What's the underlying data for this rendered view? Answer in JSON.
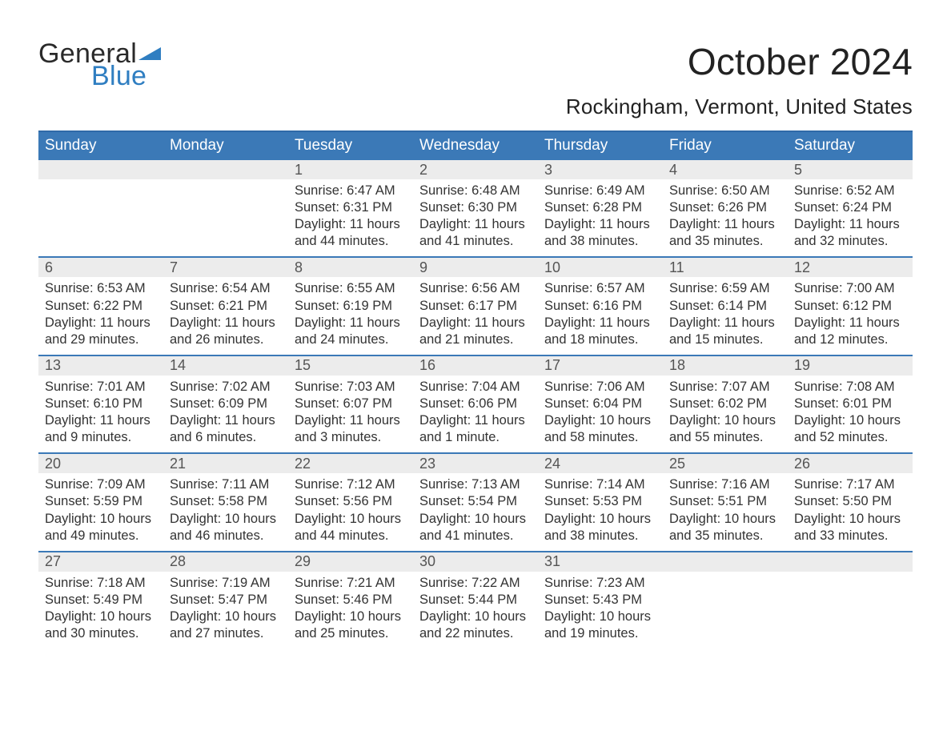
{
  "brand": {
    "part1": "General",
    "part2": "Blue"
  },
  "title": "October 2024",
  "location": "Rockingham, Vermont, United States",
  "colors": {
    "header_blue": "#3b79b7",
    "daynum_bg": "#ececec",
    "row_separator": "#3b79b7",
    "logo_blue": "#2f7ec1",
    "logo_dark": "#2a2a2a",
    "page_bg": "#ffffff",
    "text": "#333333"
  },
  "weekdays": [
    "Sunday",
    "Monday",
    "Tuesday",
    "Wednesday",
    "Thursday",
    "Friday",
    "Saturday"
  ],
  "weeks": [
    [
      {
        "empty": true
      },
      {
        "empty": true
      },
      {
        "n": "1",
        "sunrise": "6:47 AM",
        "sunset": "6:31 PM",
        "daylight": "11 hours and 44 minutes."
      },
      {
        "n": "2",
        "sunrise": "6:48 AM",
        "sunset": "6:30 PM",
        "daylight": "11 hours and 41 minutes."
      },
      {
        "n": "3",
        "sunrise": "6:49 AM",
        "sunset": "6:28 PM",
        "daylight": "11 hours and 38 minutes."
      },
      {
        "n": "4",
        "sunrise": "6:50 AM",
        "sunset": "6:26 PM",
        "daylight": "11 hours and 35 minutes."
      },
      {
        "n": "5",
        "sunrise": "6:52 AM",
        "sunset": "6:24 PM",
        "daylight": "11 hours and 32 minutes."
      }
    ],
    [
      {
        "n": "6",
        "sunrise": "6:53 AM",
        "sunset": "6:22 PM",
        "daylight": "11 hours and 29 minutes."
      },
      {
        "n": "7",
        "sunrise": "6:54 AM",
        "sunset": "6:21 PM",
        "daylight": "11 hours and 26 minutes."
      },
      {
        "n": "8",
        "sunrise": "6:55 AM",
        "sunset": "6:19 PM",
        "daylight": "11 hours and 24 minutes."
      },
      {
        "n": "9",
        "sunrise": "6:56 AM",
        "sunset": "6:17 PM",
        "daylight": "11 hours and 21 minutes."
      },
      {
        "n": "10",
        "sunrise": "6:57 AM",
        "sunset": "6:16 PM",
        "daylight": "11 hours and 18 minutes."
      },
      {
        "n": "11",
        "sunrise": "6:59 AM",
        "sunset": "6:14 PM",
        "daylight": "11 hours and 15 minutes."
      },
      {
        "n": "12",
        "sunrise": "7:00 AM",
        "sunset": "6:12 PM",
        "daylight": "11 hours and 12 minutes."
      }
    ],
    [
      {
        "n": "13",
        "sunrise": "7:01 AM",
        "sunset": "6:10 PM",
        "daylight": "11 hours and 9 minutes."
      },
      {
        "n": "14",
        "sunrise": "7:02 AM",
        "sunset": "6:09 PM",
        "daylight": "11 hours and 6 minutes."
      },
      {
        "n": "15",
        "sunrise": "7:03 AM",
        "sunset": "6:07 PM",
        "daylight": "11 hours and 3 minutes."
      },
      {
        "n": "16",
        "sunrise": "7:04 AM",
        "sunset": "6:06 PM",
        "daylight": "11 hours and 1 minute."
      },
      {
        "n": "17",
        "sunrise": "7:06 AM",
        "sunset": "6:04 PM",
        "daylight": "10 hours and 58 minutes."
      },
      {
        "n": "18",
        "sunrise": "7:07 AM",
        "sunset": "6:02 PM",
        "daylight": "10 hours and 55 minutes."
      },
      {
        "n": "19",
        "sunrise": "7:08 AM",
        "sunset": "6:01 PM",
        "daylight": "10 hours and 52 minutes."
      }
    ],
    [
      {
        "n": "20",
        "sunrise": "7:09 AM",
        "sunset": "5:59 PM",
        "daylight": "10 hours and 49 minutes."
      },
      {
        "n": "21",
        "sunrise": "7:11 AM",
        "sunset": "5:58 PM",
        "daylight": "10 hours and 46 minutes."
      },
      {
        "n": "22",
        "sunrise": "7:12 AM",
        "sunset": "5:56 PM",
        "daylight": "10 hours and 44 minutes."
      },
      {
        "n": "23",
        "sunrise": "7:13 AM",
        "sunset": "5:54 PM",
        "daylight": "10 hours and 41 minutes."
      },
      {
        "n": "24",
        "sunrise": "7:14 AM",
        "sunset": "5:53 PM",
        "daylight": "10 hours and 38 minutes."
      },
      {
        "n": "25",
        "sunrise": "7:16 AM",
        "sunset": "5:51 PM",
        "daylight": "10 hours and 35 minutes."
      },
      {
        "n": "26",
        "sunrise": "7:17 AM",
        "sunset": "5:50 PM",
        "daylight": "10 hours and 33 minutes."
      }
    ],
    [
      {
        "n": "27",
        "sunrise": "7:18 AM",
        "sunset": "5:49 PM",
        "daylight": "10 hours and 30 minutes."
      },
      {
        "n": "28",
        "sunrise": "7:19 AM",
        "sunset": "5:47 PM",
        "daylight": "10 hours and 27 minutes."
      },
      {
        "n": "29",
        "sunrise": "7:21 AM",
        "sunset": "5:46 PM",
        "daylight": "10 hours and 25 minutes."
      },
      {
        "n": "30",
        "sunrise": "7:22 AM",
        "sunset": "5:44 PM",
        "daylight": "10 hours and 22 minutes."
      },
      {
        "n": "31",
        "sunrise": "7:23 AM",
        "sunset": "5:43 PM",
        "daylight": "10 hours and 19 minutes."
      },
      {
        "empty": true
      },
      {
        "empty": true
      }
    ]
  ],
  "labels": {
    "sunrise": "Sunrise: ",
    "sunset": "Sunset: ",
    "daylight": "Daylight: "
  }
}
